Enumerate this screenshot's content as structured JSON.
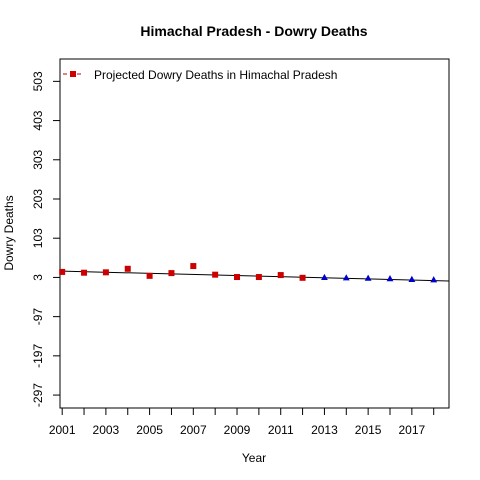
{
  "chart_data": {
    "type": "scatter",
    "title": "Himachal Pradesh  -  Dowry Deaths",
    "xlabel": "Year",
    "ylabel": "Dowry Deaths",
    "xlim": [
      2000.9,
      2018.7
    ],
    "ylim": [
      -330,
      560
    ],
    "x_ticks": [
      2001,
      2002,
      2003,
      2004,
      2005,
      2006,
      2007,
      2008,
      2009,
      2010,
      2011,
      2012,
      2013,
      2014,
      2015,
      2016,
      2017,
      2018
    ],
    "x_tick_labels": [
      "2001",
      "2003",
      "2005",
      "2007",
      "2009",
      "2011",
      "2013",
      "2015",
      "2017"
    ],
    "y_ticks": [
      -297,
      -197,
      -97,
      3,
      103,
      203,
      303,
      403,
      503
    ],
    "y_tick_labels": [
      "-297",
      "-197",
      "-97",
      "3",
      "103",
      "203",
      "303",
      "403",
      "503"
    ],
    "grid": false,
    "legend_position": "top-left",
    "legend": [
      {
        "label": "Projected  Dowry Deaths  in  Himachal Pradesh",
        "marker": "square",
        "color": "#cc0000"
      }
    ],
    "series": [
      {
        "name": "Projected  Dowry Deaths  in  Himachal Pradesh",
        "marker": "square",
        "color": "#cc0000",
        "x": [
          2001,
          2002,
          2003,
          2004,
          2005,
          2006,
          2007,
          2008,
          2009,
          2010,
          2011,
          2012
        ],
        "y": [
          17,
          15,
          16,
          25,
          7,
          14,
          32,
          10,
          4,
          4,
          9,
          2
        ]
      },
      {
        "marker": "triangle",
        "color": "#0000cc",
        "x": [
          2013,
          2014,
          2015,
          2016,
          2017,
          2018
        ],
        "y": [
          3,
          2,
          1,
          0,
          -2,
          -3
        ]
      }
    ],
    "trend_line": {
      "x": [
        2001,
        2018.7
      ],
      "y": [
        19,
        -6
      ],
      "color": "#000000"
    }
  }
}
